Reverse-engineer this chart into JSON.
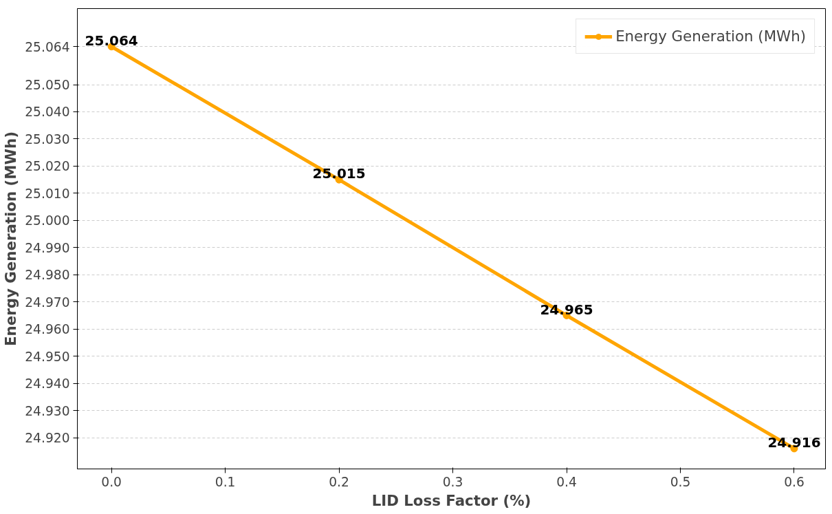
{
  "chart_data": {
    "type": "line",
    "xlabel": "LID Loss Factor (%)",
    "ylabel": "Energy Generation (MWh)",
    "x": [
      0.0,
      0.2,
      0.4,
      0.6
    ],
    "series": [
      {
        "name": "Energy Generation (MWh)",
        "color": "#ffa500",
        "values": [
          25.064,
          25.015,
          24.965,
          24.916
        ]
      }
    ],
    "xlim": [
      -0.03,
      0.6275
    ],
    "ylim": [
      24.9085,
      25.078
    ],
    "xticks": [
      {
        "value": 0,
        "label": "0.0"
      },
      0.1,
      0.2,
      0.3,
      0.4,
      0.5,
      0.6
    ],
    "yticks": [
      {
        "value": 24.92,
        "label": "24.920"
      },
      {
        "value": 24.93,
        "label": "24.930"
      },
      {
        "value": 24.94,
        "label": "24.940"
      },
      {
        "value": 24.95,
        "label": "24.950"
      },
      {
        "value": 24.96,
        "label": "24.960"
      },
      {
        "value": 24.97,
        "label": "24.970"
      },
      {
        "value": 24.98,
        "label": "24.980"
      },
      {
        "value": 24.99,
        "label": "24.990"
      },
      {
        "value": 25.0,
        "label": "25.000"
      },
      {
        "value": 25.01,
        "label": "25.010"
      },
      {
        "value": 25.02,
        "label": "25.020"
      },
      {
        "value": 25.03,
        "label": "25.030"
      },
      {
        "value": 25.04,
        "label": "25.040"
      },
      {
        "value": 25.05,
        "label": "25.050"
      },
      25.064
    ],
    "grid": "y",
    "legend": "top right",
    "marker": "circle",
    "line_style": "solid",
    "data_labels": true
  }
}
